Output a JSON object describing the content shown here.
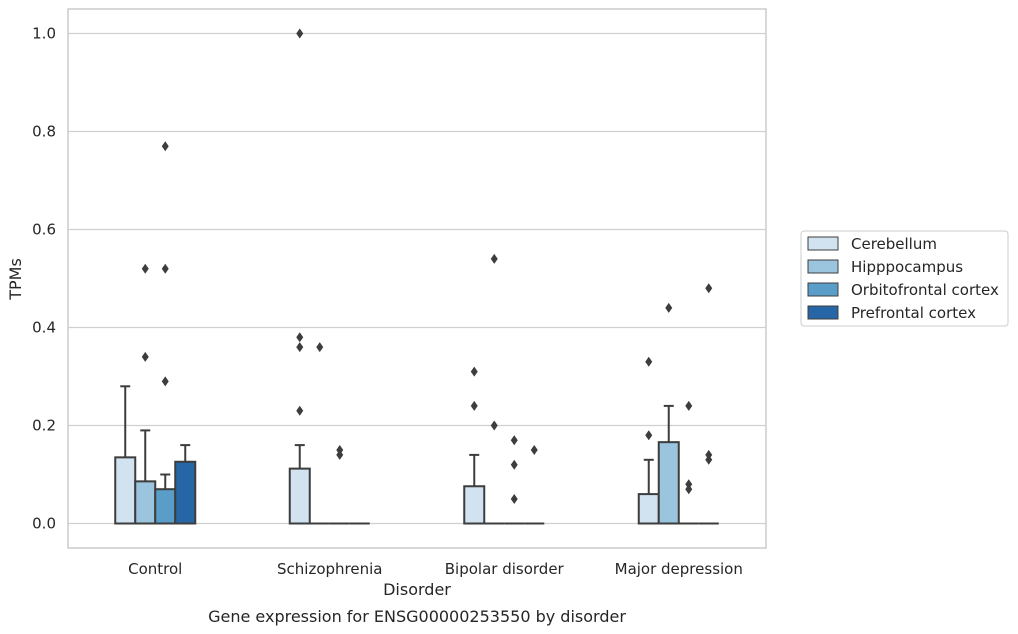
{
  "chart_data": {
    "type": "box",
    "caption": "Gene expression for ENSG00000253550 by disorder",
    "xlabel": "Disorder",
    "ylabel": "TPMs",
    "ylim": [
      -0.05,
      1.05
    ],
    "yticks": [
      "0.0",
      "0.2",
      "0.4",
      "0.6",
      "0.8",
      "1.0"
    ],
    "grid": "horizontal",
    "legend_position": "right",
    "categories": [
      "Control",
      "Schizophrenia",
      "Bipolar disorder",
      "Major depression"
    ],
    "series": [
      {
        "name": "Cerebellum",
        "color": "#d1e2f0",
        "boxes": [
          {
            "q1": 0,
            "median": 0,
            "q3": 0.135,
            "whisker_low": 0,
            "whisker_high": 0.28,
            "outliers": []
          },
          {
            "q1": 0,
            "median": 0,
            "q3": 0.112,
            "whisker_low": 0,
            "whisker_high": 0.16,
            "outliers": [
              0.38,
              0.36,
              0.23,
              1.0
            ]
          },
          {
            "q1": 0,
            "median": 0,
            "q3": 0.076,
            "whisker_low": 0,
            "whisker_high": 0.14,
            "outliers": [
              0.31,
              0.24
            ]
          },
          {
            "q1": 0,
            "median": 0,
            "q3": 0.06,
            "whisker_low": 0,
            "whisker_high": 0.13,
            "outliers": [
              0.33,
              0.18
            ]
          }
        ]
      },
      {
        "name": "Hipppocampus",
        "color": "#9bc4de",
        "boxes": [
          {
            "q1": 0,
            "median": 0,
            "q3": 0.086,
            "whisker_low": 0,
            "whisker_high": 0.19,
            "outliers": [
              0.52,
              0.34
            ]
          },
          {
            "q1": 0,
            "median": 0,
            "q3": 0,
            "whisker_low": 0,
            "whisker_high": 0,
            "outliers": [
              0.36
            ]
          },
          {
            "q1": 0,
            "median": 0,
            "q3": 0,
            "whisker_low": 0,
            "whisker_high": 0,
            "outliers": [
              0.54,
              0.2
            ]
          },
          {
            "q1": 0,
            "median": 0,
            "q3": 0.166,
            "whisker_low": 0,
            "whisker_high": 0.24,
            "outliers": [
              0.44
            ]
          }
        ]
      },
      {
        "name": "Orbitofrontal cortex",
        "color": "#5a9dc9",
        "boxes": [
          {
            "q1": 0,
            "median": 0,
            "q3": 0.07,
            "whisker_low": 0,
            "whisker_high": 0.1,
            "outliers": [
              0.52,
              0.29,
              0.77
            ]
          },
          {
            "q1": 0,
            "median": 0,
            "q3": 0,
            "whisker_low": 0,
            "whisker_high": 0,
            "outliers": [
              0.15,
              0.14
            ]
          },
          {
            "q1": 0,
            "median": 0,
            "q3": 0,
            "whisker_low": 0,
            "whisker_high": 0,
            "outliers": [
              0.17,
              0.12,
              0.05
            ]
          },
          {
            "q1": 0,
            "median": 0,
            "q3": 0,
            "whisker_low": 0,
            "whisker_high": 0,
            "outliers": [
              0.24,
              0.08,
              0.07
            ]
          }
        ]
      },
      {
        "name": "Prefrontal cortex",
        "color": "#2666a7",
        "boxes": [
          {
            "q1": 0,
            "median": 0,
            "q3": 0.126,
            "whisker_low": 0,
            "whisker_high": 0.16,
            "outliers": []
          },
          {
            "q1": 0,
            "median": 0,
            "q3": 0,
            "whisker_low": 0,
            "whisker_high": 0,
            "outliers": []
          },
          {
            "q1": 0,
            "median": 0,
            "q3": 0,
            "whisker_low": 0,
            "whisker_high": 0,
            "outliers": [
              0.15
            ]
          },
          {
            "q1": 0,
            "median": 0,
            "q3": 0,
            "whisker_low": 0,
            "whisker_high": 0,
            "outliers": [
              0.48,
              0.14,
              0.13
            ]
          }
        ]
      }
    ]
  }
}
